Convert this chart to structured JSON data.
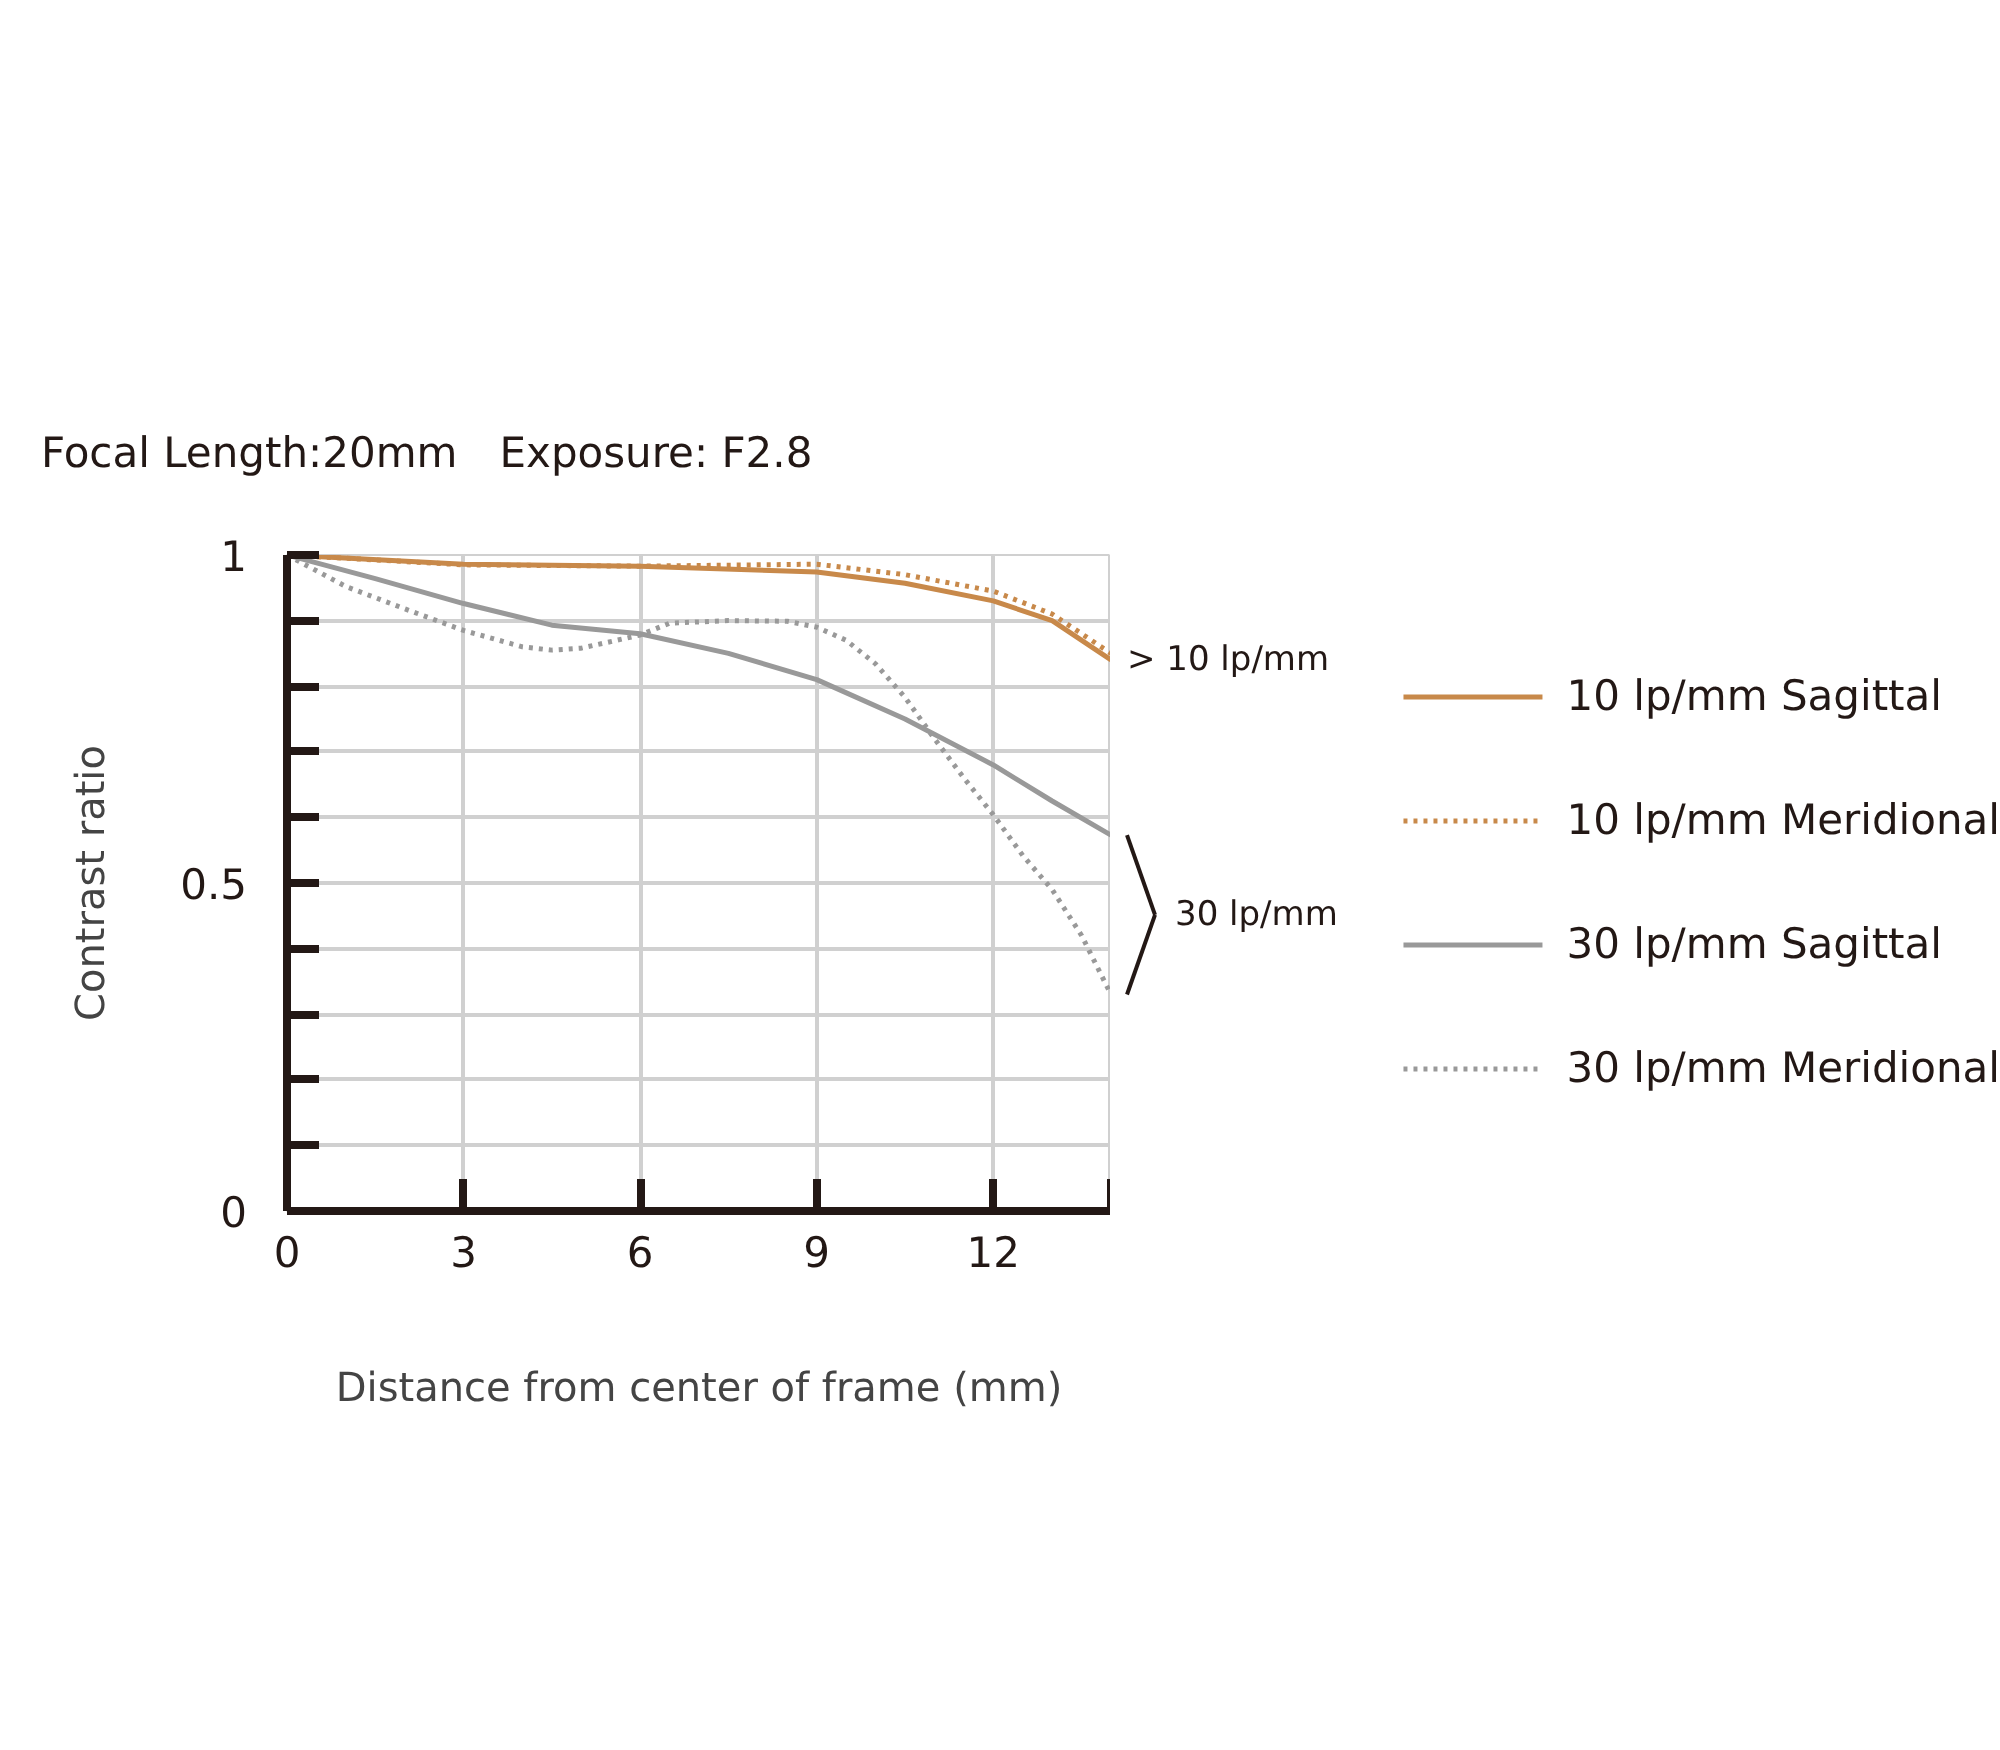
{
  "chart_data": {
    "type": "line",
    "title": "Focal Length:20mm　Exposure: F2.8",
    "xlabel": "Distance from center of frame (mm)",
    "ylabel": "Contrast ratio",
    "xlim": [
      0,
      14
    ],
    "ylim": [
      0,
      1
    ],
    "xticks": [
      0,
      3,
      6,
      9,
      12,
      {
        "value": 14,
        "label": null
      }
    ],
    "yticks": [
      0,
      {
        "value": 0.1,
        "label": null
      },
      {
        "value": 0.2,
        "label": null
      },
      {
        "value": 0.3,
        "label": null
      },
      {
        "value": 0.4,
        "label": null
      },
      0.5,
      {
        "value": 0.6,
        "label": null
      },
      {
        "value": 0.7,
        "label": null
      },
      {
        "value": 0.8,
        "label": null
      },
      {
        "value": 0.9,
        "label": null
      },
      1
    ],
    "grid": true,
    "legend": "right",
    "marker": "none",
    "series": [
      {
        "name": "10 lp/mm Sagittal",
        "color": "#c8894a",
        "line_style": "solid",
        "x": [
          0,
          3,
          6,
          9,
          10.5,
          12,
          13,
          14
        ],
        "values": [
          1.0,
          0.986,
          0.983,
          0.974,
          0.957,
          0.93,
          0.9,
          0.84
        ]
      },
      {
        "name": "10 lp/mm Meridional",
        "color": "#c8894a",
        "line_style": "dotted",
        "x": [
          0,
          3,
          6,
          9,
          10.5,
          12,
          13,
          14
        ],
        "values": [
          1.0,
          0.985,
          0.983,
          0.986,
          0.97,
          0.945,
          0.91,
          0.85
        ]
      },
      {
        "name": "30 lp/mm Sagittal",
        "color": "#999999",
        "line_style": "solid",
        "x": [
          0,
          1.5,
          3,
          4.5,
          6,
          7.5,
          9,
          10.5,
          12,
          13,
          14
        ],
        "values": [
          1.0,
          0.964,
          0.926,
          0.893,
          0.88,
          0.85,
          0.81,
          0.75,
          0.68,
          0.625,
          0.573
        ]
      },
      {
        "name": "30 lp/mm Meridional",
        "color": "#999999",
        "line_style": "dotted",
        "x": [
          0,
          1,
          2,
          3,
          4,
          4.5,
          5,
          6,
          6.5,
          7.5,
          8.5,
          9,
          9.5,
          10,
          10.5,
          11,
          11.5,
          12,
          12.5,
          13,
          13.5,
          14
        ],
        "values": [
          1.0,
          0.952,
          0.918,
          0.885,
          0.86,
          0.855,
          0.858,
          0.878,
          0.896,
          0.9,
          0.899,
          0.89,
          0.87,
          0.834,
          0.783,
          0.72,
          0.66,
          0.604,
          0.542,
          0.49,
          0.42,
          0.33
        ]
      }
    ],
    "annotations": [
      {
        "text": "> 10 lp/mm",
        "x": 14,
        "y": 0.84
      },
      "30 lp/mm"
    ]
  }
}
